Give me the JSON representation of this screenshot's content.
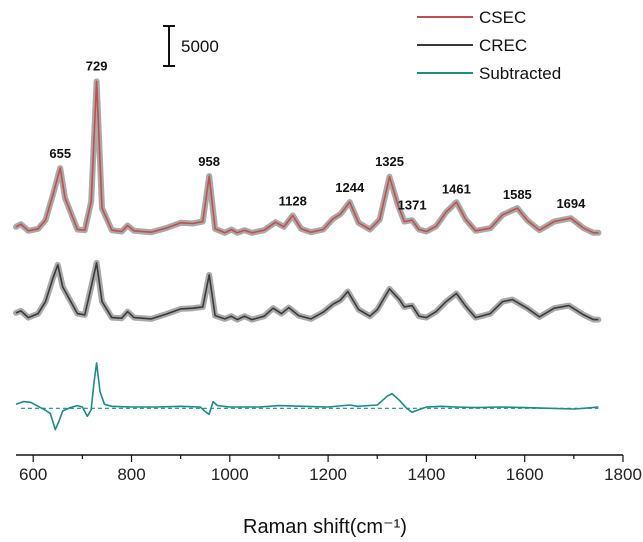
{
  "chart_data": {
    "type": "line",
    "xlabel": "Raman shift(cm⁻¹)",
    "ylabel": "",
    "xlim": [
      565,
      1800
    ],
    "ylim": [
      -7000,
      60000
    ],
    "x_ticks": [
      600,
      800,
      1000,
      1200,
      1400,
      1600,
      1800
    ],
    "grid": false,
    "legend_position": "top-right",
    "scale_bar": {
      "label": "5000",
      "value": 5000
    },
    "series": [
      {
        "name": "CSEC",
        "color": "#c0504d",
        "band_color": "#9a9a9a",
        "baseline": 26000,
        "points": [
          [
            565,
            1200
          ],
          [
            575,
            1600
          ],
          [
            590,
            600
          ],
          [
            610,
            900
          ],
          [
            625,
            2200
          ],
          [
            640,
            6000
          ],
          [
            655,
            10000
          ],
          [
            665,
            5500
          ],
          [
            690,
            800
          ],
          [
            705,
            700
          ],
          [
            718,
            5000
          ],
          [
            729,
            23000
          ],
          [
            740,
            4000
          ],
          [
            760,
            700
          ],
          [
            780,
            500
          ],
          [
            792,
            1400
          ],
          [
            805,
            600
          ],
          [
            840,
            400
          ],
          [
            870,
            1000
          ],
          [
            900,
            1800
          ],
          [
            925,
            1700
          ],
          [
            945,
            2000
          ],
          [
            958,
            8800
          ],
          [
            970,
            900
          ],
          [
            990,
            300
          ],
          [
            1003,
            800
          ],
          [
            1015,
            300
          ],
          [
            1030,
            700
          ],
          [
            1045,
            300
          ],
          [
            1070,
            700
          ],
          [
            1093,
            1900
          ],
          [
            1110,
            1200
          ],
          [
            1128,
            2900
          ],
          [
            1145,
            900
          ],
          [
            1165,
            400
          ],
          [
            1190,
            800
          ],
          [
            1210,
            2400
          ],
          [
            1225,
            3100
          ],
          [
            1244,
            4900
          ],
          [
            1262,
            1800
          ],
          [
            1285,
            800
          ],
          [
            1305,
            2300
          ],
          [
            1325,
            8700
          ],
          [
            1342,
            4500
          ],
          [
            1355,
            2000
          ],
          [
            1371,
            2200
          ],
          [
            1385,
            800
          ],
          [
            1400,
            500
          ],
          [
            1420,
            1300
          ],
          [
            1440,
            3400
          ],
          [
            1461,
            4900
          ],
          [
            1480,
            2300
          ],
          [
            1500,
            600
          ],
          [
            1530,
            1000
          ],
          [
            1555,
            3000
          ],
          [
            1585,
            4000
          ],
          [
            1605,
            2200
          ],
          [
            1630,
            700
          ],
          [
            1660,
            2000
          ],
          [
            1694,
            2500
          ],
          [
            1720,
            1000
          ],
          [
            1740,
            300
          ],
          [
            1750,
            300
          ]
        ]
      },
      {
        "name": "CREC",
        "color": "#3a3a3a",
        "band_color": "#9a9a9a",
        "baseline": 13000,
        "points": [
          [
            565,
            1300
          ],
          [
            575,
            1600
          ],
          [
            590,
            600
          ],
          [
            610,
            1200
          ],
          [
            625,
            3000
          ],
          [
            640,
            6500
          ],
          [
            650,
            8500
          ],
          [
            660,
            5200
          ],
          [
            690,
            1200
          ],
          [
            705,
            1000
          ],
          [
            718,
            5200
          ],
          [
            729,
            8800
          ],
          [
            740,
            3000
          ],
          [
            760,
            600
          ],
          [
            780,
            500
          ],
          [
            792,
            1500
          ],
          [
            805,
            600
          ],
          [
            840,
            400
          ],
          [
            870,
            1100
          ],
          [
            900,
            1900
          ],
          [
            925,
            2000
          ],
          [
            945,
            2200
          ],
          [
            958,
            7000
          ],
          [
            970,
            900
          ],
          [
            990,
            400
          ],
          [
            1003,
            800
          ],
          [
            1015,
            300
          ],
          [
            1030,
            800
          ],
          [
            1045,
            300
          ],
          [
            1070,
            800
          ],
          [
            1088,
            2000
          ],
          [
            1105,
            1200
          ],
          [
            1120,
            2100
          ],
          [
            1140,
            900
          ],
          [
            1165,
            400
          ],
          [
            1190,
            1400
          ],
          [
            1210,
            2600
          ],
          [
            1225,
            3200
          ],
          [
            1240,
            4500
          ],
          [
            1262,
            1800
          ],
          [
            1285,
            800
          ],
          [
            1300,
            1800
          ],
          [
            1325,
            4900
          ],
          [
            1345,
            3300
          ],
          [
            1355,
            2200
          ],
          [
            1371,
            2400
          ],
          [
            1385,
            800
          ],
          [
            1400,
            600
          ],
          [
            1420,
            1500
          ],
          [
            1440,
            3000
          ],
          [
            1461,
            4200
          ],
          [
            1480,
            2300
          ],
          [
            1500,
            600
          ],
          [
            1530,
            1200
          ],
          [
            1555,
            3000
          ],
          [
            1575,
            3300
          ],
          [
            1605,
            2000
          ],
          [
            1630,
            700
          ],
          [
            1660,
            2000
          ],
          [
            1690,
            2400
          ],
          [
            1720,
            1000
          ],
          [
            1740,
            300
          ],
          [
            1750,
            300
          ]
        ]
      },
      {
        "name": "Subtracted",
        "color": "#1f8a8a",
        "baseline": 0,
        "baseline_dashed": true,
        "points": [
          [
            565,
            600
          ],
          [
            580,
            1000
          ],
          [
            595,
            900
          ],
          [
            610,
            300
          ],
          [
            625,
            -300
          ],
          [
            635,
            -800
          ],
          [
            645,
            -3200
          ],
          [
            652,
            -2000
          ],
          [
            660,
            -400
          ],
          [
            675,
            100
          ],
          [
            690,
            400
          ],
          [
            700,
            200
          ],
          [
            710,
            -1200
          ],
          [
            718,
            -200
          ],
          [
            724,
            4000
          ],
          [
            729,
            6800
          ],
          [
            736,
            2500
          ],
          [
            745,
            600
          ],
          [
            760,
            300
          ],
          [
            800,
            200
          ],
          [
            850,
            200
          ],
          [
            900,
            300
          ],
          [
            940,
            200
          ],
          [
            950,
            -500
          ],
          [
            958,
            -900
          ],
          [
            966,
            1000
          ],
          [
            975,
            400
          ],
          [
            1000,
            200
          ],
          [
            1060,
            200
          ],
          [
            1100,
            400
          ],
          [
            1150,
            300
          ],
          [
            1200,
            200
          ],
          [
            1244,
            500
          ],
          [
            1260,
            300
          ],
          [
            1300,
            500
          ],
          [
            1320,
            1800
          ],
          [
            1330,
            2200
          ],
          [
            1345,
            1200
          ],
          [
            1360,
            0
          ],
          [
            1371,
            -600
          ],
          [
            1385,
            -200
          ],
          [
            1400,
            200
          ],
          [
            1430,
            300
          ],
          [
            1460,
            200
          ],
          [
            1500,
            100
          ],
          [
            1550,
            200
          ],
          [
            1600,
            100
          ],
          [
            1650,
            0
          ],
          [
            1700,
            -100
          ],
          [
            1720,
            0
          ],
          [
            1750,
            200
          ]
        ]
      }
    ],
    "peak_labels": [
      {
        "text": "655",
        "x": 655,
        "y": 37500
      },
      {
        "text": "729",
        "x": 729,
        "y": 50600
      },
      {
        "text": "958",
        "x": 958,
        "y": 36300
      },
      {
        "text": "1128",
        "x": 1128,
        "y": 30400
      },
      {
        "text": "1244",
        "x": 1244,
        "y": 32400
      },
      {
        "text": "1325",
        "x": 1325,
        "y": 36300
      },
      {
        "text": "1371",
        "x": 1371,
        "y": 29800
      },
      {
        "text": "1461",
        "x": 1461,
        "y": 32200
      },
      {
        "text": "1585",
        "x": 1585,
        "y": 31400
      },
      {
        "text": "1694",
        "x": 1694,
        "y": 30000
      }
    ]
  }
}
